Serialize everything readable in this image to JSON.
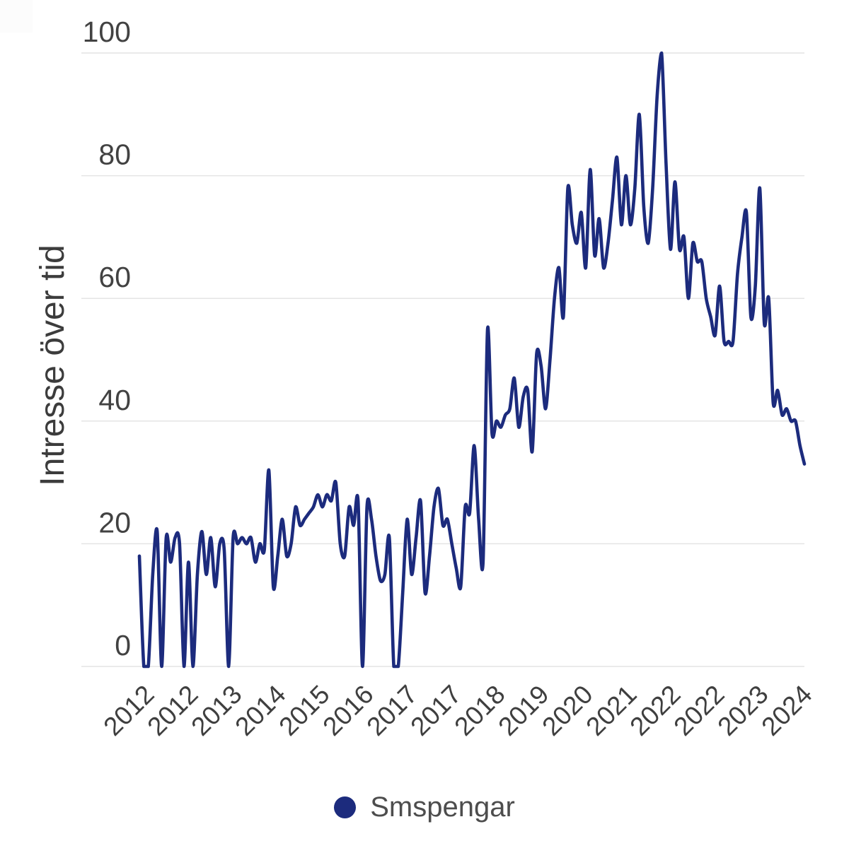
{
  "page": {
    "background": "#ffffff"
  },
  "colors": {
    "line": "#1c2b7d",
    "grid": "#e4e4e4",
    "tick_text": "#424242",
    "axis_title_text": "#3c3c3c",
    "legend_text": "#4d4d4d",
    "background": "#ffffff"
  },
  "legend": {
    "label": "Smspengar",
    "marker_color": "#1c2b7d"
  },
  "chart_data": {
    "type": "line",
    "title": "",
    "xlabel": "",
    "ylabel": "Intresse över tid",
    "ylim": [
      0,
      100
    ],
    "yticks": [
      0,
      20,
      40,
      60,
      80,
      100
    ],
    "xtick_labels": [
      "2012",
      "2012",
      "2013",
      "2014",
      "2015",
      "2016",
      "2017",
      "2017",
      "2018",
      "2019",
      "2020",
      "2021",
      "2022",
      "2022",
      "2023",
      "2024"
    ],
    "grid": "horizontal",
    "legend_position": "bottom-center",
    "series": [
      {
        "name": "Smspengar",
        "color": "#1c2b7d",
        "x_unit": "month",
        "x_start": "2012-01",
        "x_end": "2024-06",
        "values": [
          18,
          0,
          0,
          15,
          22,
          0,
          21,
          17,
          21,
          20,
          0,
          17,
          0,
          15,
          22,
          15,
          21,
          13,
          20,
          19,
          0,
          21,
          20,
          21,
          20,
          21,
          17,
          20,
          19,
          32,
          13,
          18,
          24,
          18,
          20,
          26,
          23,
          24,
          25,
          26,
          28,
          26,
          28,
          27,
          30,
          20,
          18,
          26,
          23,
          27,
          0,
          26,
          24,
          18,
          14,
          15,
          21,
          0,
          0,
          12,
          24,
          15,
          21,
          27,
          12,
          18,
          26,
          29,
          23,
          24,
          20,
          16,
          13,
          26,
          25,
          36,
          24,
          17,
          55,
          38,
          40,
          39,
          41,
          42,
          47,
          39,
          44,
          45,
          35,
          51,
          49,
          42,
          50,
          60,
          65,
          57,
          78,
          72,
          69,
          74,
          65,
          81,
          67,
          73,
          65,
          69,
          76,
          83,
          72,
          80,
          72,
          78,
          90,
          75,
          69,
          78,
          93,
          100,
          82,
          68,
          79,
          68,
          70,
          60,
          69,
          66,
          66,
          60,
          57,
          54,
          62,
          53,
          53,
          53,
          64,
          70,
          74,
          57,
          62,
          78,
          56,
          60,
          43,
          45,
          41,
          42,
          40,
          40,
          36,
          33
        ]
      }
    ]
  }
}
